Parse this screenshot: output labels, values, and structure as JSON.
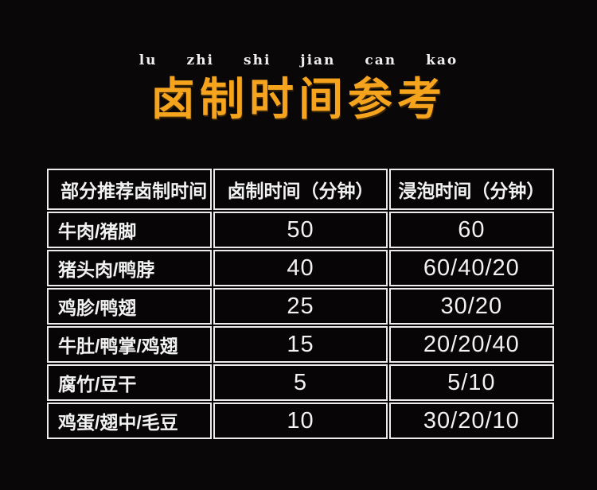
{
  "page": {
    "background_color": "#0a0708",
    "accent_color": "#f6a41e",
    "text_color": "#f2f2f2",
    "border_color": "#ececec"
  },
  "header": {
    "pinyin": [
      "lu",
      "zhi",
      "shi",
      "jian",
      "can",
      "kao"
    ],
    "title": "卤制时间参考"
  },
  "table": {
    "columns": [
      "部分推荐卤制时间",
      "卤制时间（分钟）",
      "浸泡时间（分钟）"
    ],
    "rows": [
      {
        "item": "牛肉/猪脚",
        "braise_minutes": "50",
        "soak_minutes": "60"
      },
      {
        "item": "猪头肉/鸭脖",
        "braise_minutes": "40",
        "soak_minutes": "60/40/20"
      },
      {
        "item": "鸡胗/鸭翅",
        "braise_minutes": "25",
        "soak_minutes": "30/20"
      },
      {
        "item": "牛肚/鸭掌/鸡翅",
        "braise_minutes": "15",
        "soak_minutes": "20/20/40"
      },
      {
        "item": "腐竹/豆干",
        "braise_minutes": "5",
        "soak_minutes": "5/10"
      },
      {
        "item": "鸡蛋/翅中/毛豆",
        "braise_minutes": "10",
        "soak_minutes": "30/20/10"
      }
    ]
  }
}
